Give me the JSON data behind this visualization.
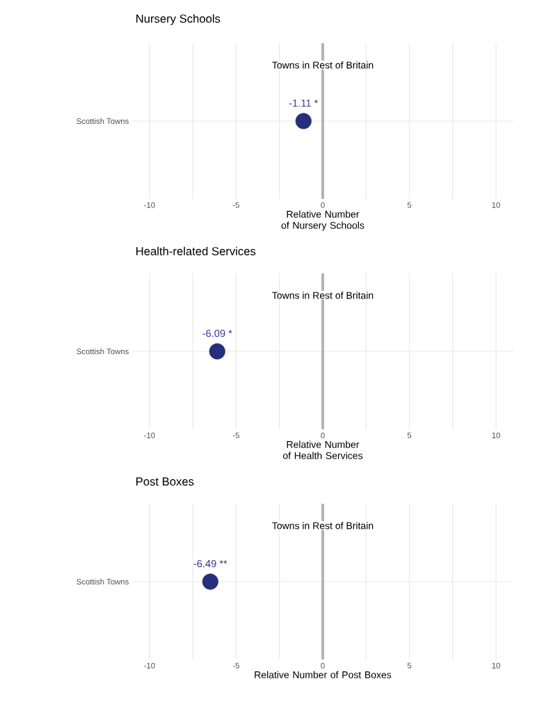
{
  "chart_data": [
    {
      "type": "scatter",
      "title": "Nursery Schools",
      "xlabel": "Relative Number of Nursery Schools",
      "categories": [
        "Scottish Towns"
      ],
      "orientation": "horizontal",
      "values": [
        -1.11
      ],
      "value_labels": [
        "-1.11 *"
      ],
      "color": "#262f7a",
      "marker": "circle",
      "xlim": [
        -11,
        11
      ],
      "xticks": [
        -10,
        -5,
        0,
        5,
        10
      ],
      "grid": true,
      "ref_lines": [
        {
          "axis": "x",
          "value": 0,
          "label": "Towns in Rest of Britain",
          "color": "#b3b3b3"
        }
      ]
    },
    {
      "type": "scatter",
      "title": "Health-related Services",
      "xlabel": "Relative Number of Health Services",
      "categories": [
        "Scottish Towns"
      ],
      "orientation": "horizontal",
      "values": [
        -6.09
      ],
      "value_labels": [
        "-6.09 *"
      ],
      "color": "#262f7a",
      "marker": "circle",
      "xlim": [
        -11,
        11
      ],
      "xticks": [
        -10,
        -5,
        0,
        5,
        10
      ],
      "grid": true,
      "ref_lines": [
        {
          "axis": "x",
          "value": 0,
          "label": "Towns in Rest of Britain",
          "color": "#b3b3b3"
        }
      ]
    },
    {
      "type": "scatter",
      "title": "Post Boxes",
      "xlabel": "Relative Number of Post Boxes",
      "categories": [
        "Scottish Towns"
      ],
      "orientation": "horizontal",
      "values": [
        -6.49
      ],
      "value_labels": [
        "-6.49 **"
      ],
      "color": "#262f7a",
      "marker": "circle",
      "xlim": [
        -11,
        11
      ],
      "xticks": [
        -10,
        -5,
        0,
        5,
        10
      ],
      "grid": true,
      "ref_lines": [
        {
          "axis": "x",
          "value": 0,
          "label": "Towns in Rest of Britain",
          "color": "#b3b3b3"
        }
      ]
    }
  ]
}
